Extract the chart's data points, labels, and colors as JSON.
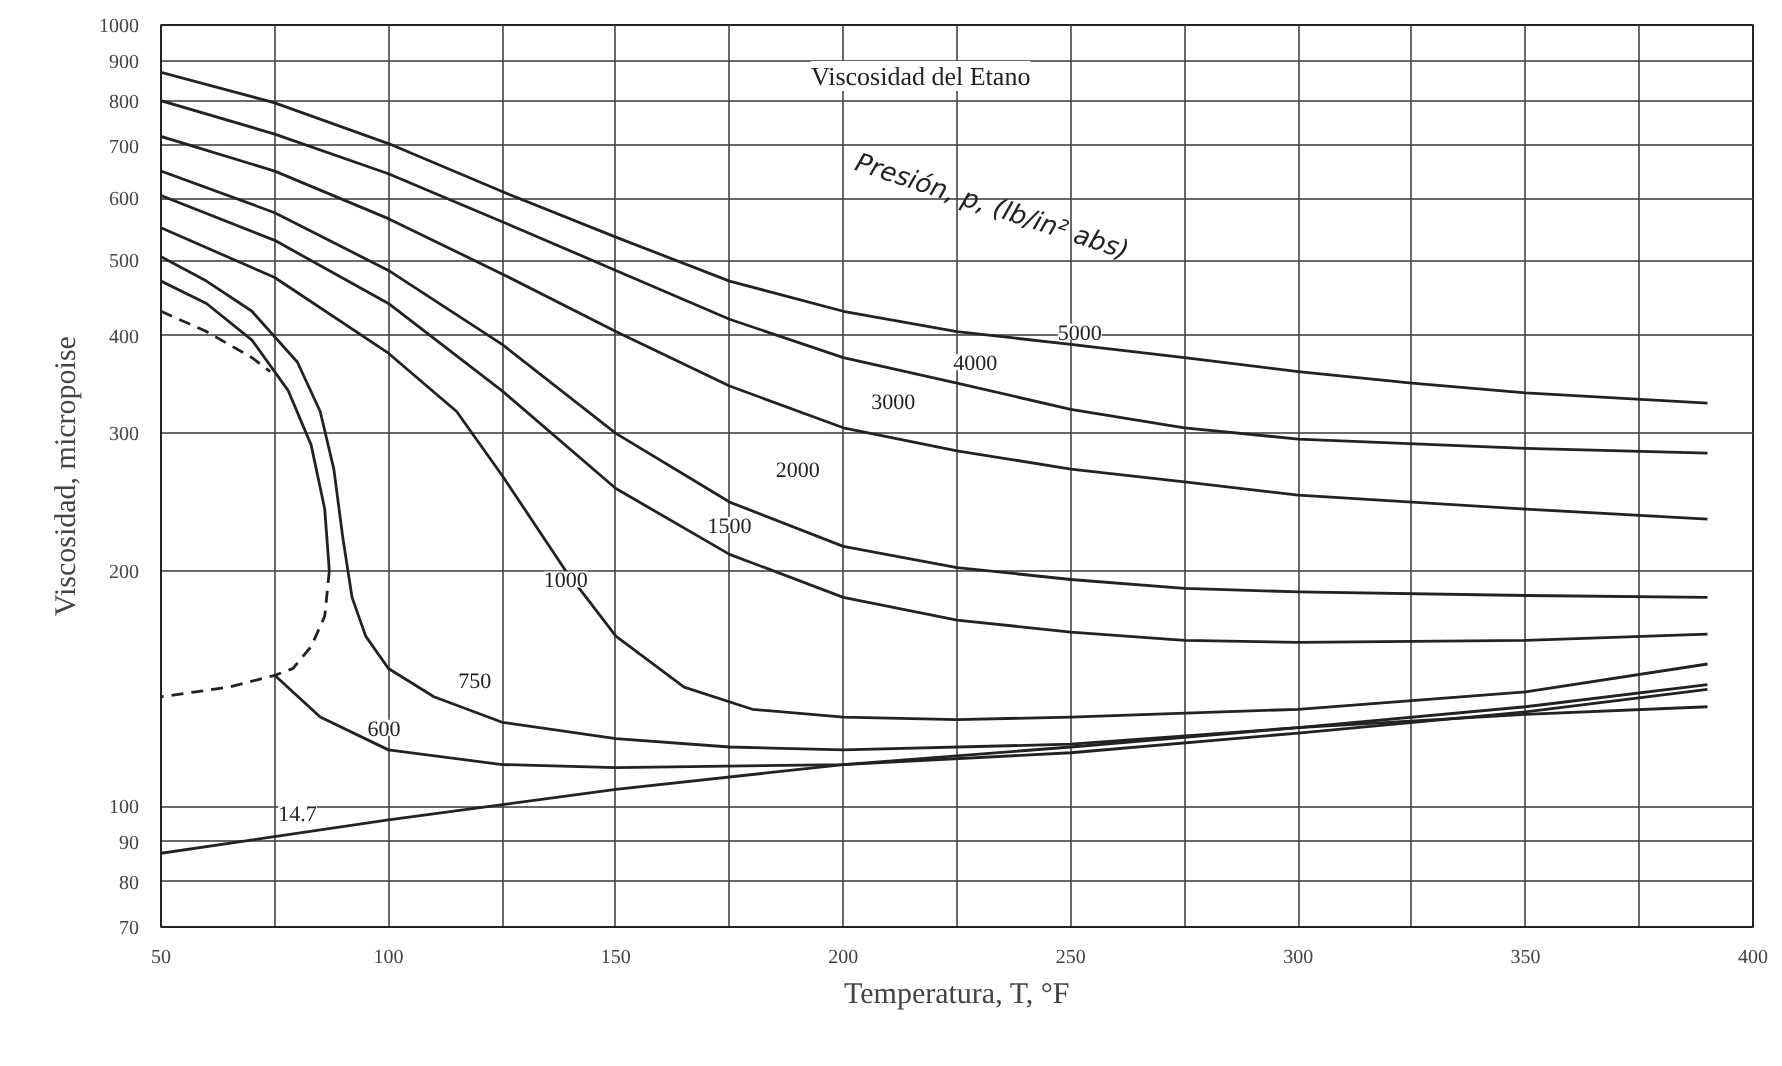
{
  "chart_data": {
    "type": "line",
    "title": "Viscosidad del Etano",
    "xlabel": "Temperatura, T, °F",
    "ylabel": "Viscosidad, micropoise",
    "log": "y",
    "grid": true,
    "marker": "none",
    "line_style": "solid",
    "xlim": [
      50,
      400
    ],
    "ylim": [
      70,
      1000
    ],
    "xticks": [
      50,
      {
        "value": 75,
        "label": null
      },
      100,
      {
        "value": 125,
        "label": null
      },
      150,
      {
        "value": 175,
        "label": null
      },
      200,
      {
        "value": 225,
        "label": null
      },
      250,
      {
        "value": 275,
        "label": null
      },
      300,
      {
        "value": 325,
        "label": null
      },
      350,
      {
        "value": 375,
        "label": null
      },
      400
    ],
    "yticks": [
      70,
      80,
      90,
      100,
      200,
      300,
      400,
      500,
      600,
      700,
      800,
      900,
      1000
    ],
    "series": [
      {
        "color": "#222222",
        "x": [
          50,
          75,
          100,
          125,
          150,
          175,
          200,
          225,
          250,
          275,
          300,
          325,
          350,
          390
        ],
        "values": [
          870,
          795,
          705,
          612,
          535,
          470,
          430,
          405,
          390,
          375,
          360,
          348,
          338,
          328
        ]
      },
      {
        "color": "#222222",
        "x": [
          50,
          75,
          100,
          125,
          150,
          175,
          200,
          225,
          250,
          275,
          300,
          350,
          390
        ],
        "values": [
          800,
          725,
          645,
          560,
          485,
          420,
          375,
          348,
          322,
          305,
          295,
          287,
          283
        ]
      },
      {
        "color": "#222222",
        "x": [
          50,
          75,
          100,
          125,
          150,
          175,
          200,
          225,
          250,
          275,
          300,
          350,
          390
        ],
        "values": [
          720,
          650,
          565,
          480,
          405,
          345,
          305,
          285,
          270,
          260,
          250,
          240,
          233
        ]
      },
      {
        "color": "#222222",
        "x": [
          50,
          75,
          100,
          125,
          150,
          175,
          200,
          225,
          250,
          275,
          300,
          350,
          390
        ],
        "values": [
          650,
          575,
          485,
          390,
          300,
          245,
          215,
          202,
          195,
          190,
          188,
          186,
          185
        ]
      },
      {
        "color": "#222222",
        "x": [
          50,
          75,
          100,
          125,
          150,
          175,
          200,
          225,
          250,
          275,
          300,
          350,
          390
        ],
        "values": [
          605,
          530,
          440,
          340,
          255,
          210,
          185,
          173,
          167,
          163,
          162,
          163,
          166
        ]
      },
      {
        "color": "#222222",
        "x": [
          50,
          75,
          100,
          115,
          125,
          139,
          150,
          165,
          180,
          200,
          225,
          250,
          300,
          350,
          390
        ],
        "values": [
          550,
          475,
          380,
          320,
          265,
          200,
          165,
          142,
          133,
          130,
          129,
          130,
          133,
          140,
          152
        ]
      },
      {
        "color": "#222222",
        "x": [
          50,
          60,
          70,
          80,
          85,
          88,
          90,
          92,
          95,
          100,
          110,
          125,
          150,
          175,
          200,
          250,
          300,
          350,
          390
        ],
        "values": [
          505,
          470,
          430,
          370,
          320,
          270,
          220,
          185,
          165,
          150,
          138,
          128,
          122,
          119,
          118,
          120,
          126,
          134,
          143
        ]
      },
      {
        "color": "#222222",
        "x": [
          50,
          60,
          70,
          78,
          83,
          86,
          87,
          81,
          75,
          85,
          100,
          125,
          150,
          200,
          250,
          300,
          350,
          390
        ],
        "values": [
          470,
          440,
          395,
          340,
          290,
          240,
          200,
          null,
          147,
          130,
          118,
          113,
          112,
          113,
          117,
          124,
          132,
          141
        ]
      },
      {
        "color": "#222222",
        "x": [
          50,
          100,
          150,
          200,
          250,
          300,
          350,
          390
        ],
        "values": [
          87,
          96,
          105,
          113,
          119,
          126,
          131,
          134
        ]
      },
      {
        "color": "#222222",
        "line_style": "dashed",
        "x": [
          50,
          60,
          70,
          74,
          80,
          87,
          86,
          83,
          79,
          75,
          65,
          50
        ],
        "values": [
          430,
          405,
          375,
          360,
          null,
          200,
          175,
          160,
          150,
          147,
          142,
          138
        ]
      }
    ],
    "annotations": [
      "Presión, p, (lb/in² abs)",
      {
        "text": "14.7",
        "x": 80,
        "y": 98
      },
      {
        "text": "600",
        "x": 99,
        "y": 126
      },
      {
        "text": "750",
        "x": 119,
        "y": 145
      },
      {
        "text": "1000",
        "x": 139,
        "y": 195
      },
      {
        "text": "1500",
        "x": 175,
        "y": 229
      },
      {
        "text": "2000",
        "x": 190,
        "y": 270
      },
      {
        "text": "3000",
        "x": 211,
        "y": 330
      },
      {
        "text": "4000",
        "x": 229,
        "y": 370
      },
      {
        "text": "5000",
        "x": 252,
        "y": 405
      }
    ]
  }
}
